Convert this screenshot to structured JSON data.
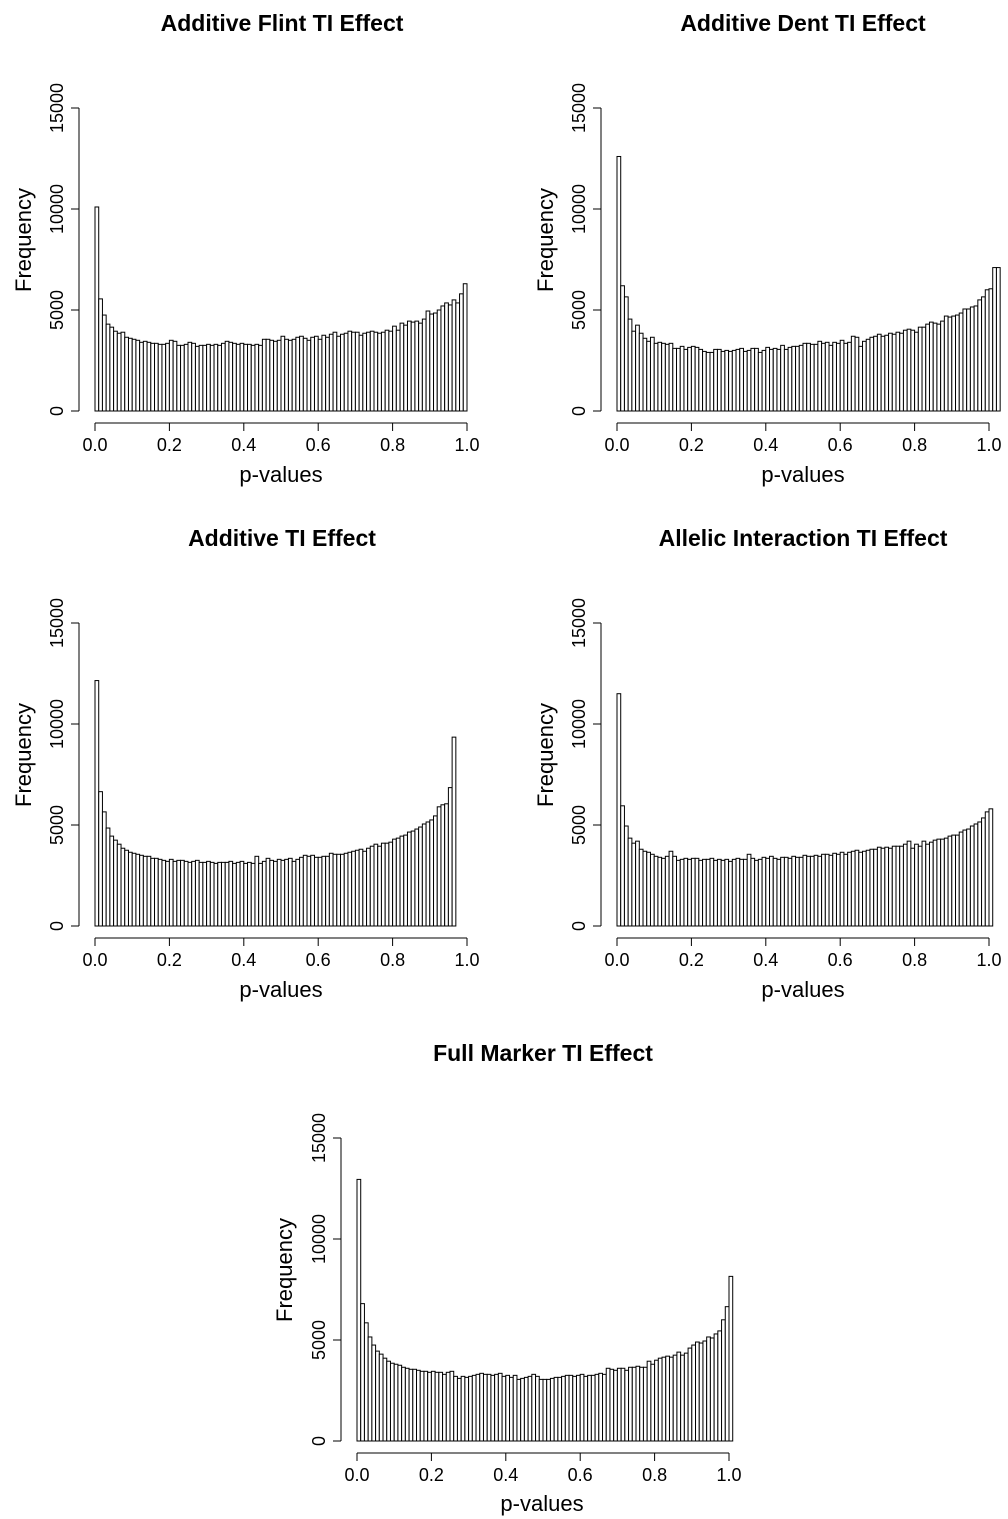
{
  "chart_data": [
    {
      "type": "bar",
      "title": "Additive Flint TI Effect",
      "xlabel": "p-values",
      "ylabel": "Frequency",
      "xlim": [
        0,
        1
      ],
      "ylim": [
        0,
        15000
      ],
      "xticks": [
        "0.0",
        "0.2",
        "0.4",
        "0.6",
        "0.8",
        "1.0"
      ],
      "yticks": [
        "0",
        "5000",
        "10000",
        "15000"
      ],
      "bin_width": 0.01,
      "values": [
        10100,
        5550,
        4750,
        4300,
        4150,
        3950,
        3850,
        3900,
        3650,
        3600,
        3550,
        3500,
        3400,
        3450,
        3400,
        3350,
        3350,
        3300,
        3300,
        3350,
        3500,
        3450,
        3250,
        3250,
        3300,
        3400,
        3350,
        3200,
        3250,
        3250,
        3300,
        3250,
        3300,
        3250,
        3350,
        3450,
        3400,
        3350,
        3300,
        3350,
        3300,
        3300,
        3250,
        3300,
        3250,
        3550,
        3550,
        3500,
        3450,
        3500,
        3700,
        3550,
        3500,
        3550,
        3650,
        3700,
        3600,
        3500,
        3650,
        3700,
        3550,
        3750,
        3650,
        3800,
        3900,
        3700,
        3800,
        3850,
        3950,
        3900,
        3900,
        3750,
        3850,
        3900,
        3950,
        3900,
        3850,
        3900,
        4000,
        3950,
        4200,
        4000,
        4350,
        4250,
        4450,
        4400,
        4450,
        4350,
        4550,
        4950,
        4800,
        4850,
        5000,
        5200,
        5350,
        5250,
        5500,
        5350,
        5800,
        6300
      ]
    },
    {
      "type": "bar",
      "title": "Additive Dent TI Effect",
      "xlabel": "p-values",
      "ylabel": "Frequency",
      "xlim": [
        0,
        1
      ],
      "ylim": [
        0,
        15000
      ],
      "xticks": [
        "0.0",
        "0.2",
        "0.4",
        "0.6",
        "0.8",
        "1.0"
      ],
      "yticks": [
        "0",
        "5000",
        "10000",
        "15000"
      ],
      "bin_width": 0.01,
      "values": [
        12600,
        6200,
        5650,
        4550,
        3950,
        4250,
        3850,
        3600,
        3450,
        3650,
        3350,
        3400,
        3350,
        3300,
        3350,
        3100,
        3100,
        3200,
        3050,
        3150,
        3200,
        3150,
        3050,
        2950,
        2900,
        2900,
        3050,
        3050,
        2950,
        3000,
        2950,
        3000,
        3050,
        3100,
        2950,
        3000,
        3100,
        3100,
        2900,
        3000,
        3150,
        3050,
        3100,
        3050,
        3250,
        3050,
        3150,
        3200,
        3200,
        3250,
        3350,
        3350,
        3300,
        3300,
        3450,
        3350,
        3400,
        3250,
        3400,
        3350,
        3500,
        3350,
        3400,
        3700,
        3650,
        3200,
        3450,
        3550,
        3650,
        3700,
        3800,
        3700,
        3750,
        3850,
        3800,
        3900,
        3850,
        4000,
        4050,
        4000,
        3900,
        4150,
        4150,
        4300,
        4400,
        4350,
        4300,
        4450,
        4700,
        4650,
        4700,
        4750,
        4850,
        5050,
        5050,
        5150,
        5200,
        5500,
        5650,
        6000,
        6050,
        7100,
        7100
      ]
    },
    {
      "type": "bar",
      "title": "Additive TI Effect",
      "xlabel": "p-values",
      "ylabel": "Frequency",
      "xlim": [
        0,
        1
      ],
      "ylim": [
        0,
        15000
      ],
      "xticks": [
        "0.0",
        "0.2",
        "0.4",
        "0.6",
        "0.8",
        "1.0"
      ],
      "yticks": [
        "0",
        "5000",
        "10000",
        "15000"
      ],
      "bin_width": 0.01,
      "values": [
        12150,
        6650,
        5650,
        4850,
        4450,
        4250,
        4050,
        3850,
        3750,
        3650,
        3600,
        3550,
        3500,
        3450,
        3450,
        3350,
        3350,
        3300,
        3250,
        3200,
        3300,
        3200,
        3250,
        3250,
        3200,
        3150,
        3200,
        3250,
        3150,
        3150,
        3200,
        3150,
        3100,
        3150,
        3150,
        3150,
        3200,
        3100,
        3150,
        3200,
        3100,
        3150,
        3100,
        3450,
        3100,
        3200,
        3350,
        3250,
        3200,
        3300,
        3250,
        3300,
        3350,
        3200,
        3300,
        3400,
        3500,
        3450,
        3500,
        3400,
        3400,
        3450,
        3450,
        3600,
        3550,
        3550,
        3550,
        3600,
        3650,
        3700,
        3750,
        3800,
        3700,
        3850,
        3950,
        4050,
        3950,
        4100,
        4100,
        4150,
        4300,
        4350,
        4450,
        4500,
        4650,
        4700,
        4800,
        4900,
        5050,
        5150,
        5250,
        5450,
        5900,
        6000,
        6050,
        6850,
        9350
      ]
    },
    {
      "type": "bar",
      "title": "Allelic Interaction TI Effect",
      "xlabel": "p-values",
      "ylabel": "Frequency",
      "xlim": [
        0,
        1
      ],
      "ylim": [
        0,
        15000
      ],
      "xticks": [
        "0.0",
        "0.2",
        "0.4",
        "0.6",
        "0.8",
        "1.0"
      ],
      "yticks": [
        "0",
        "5000",
        "10000",
        "15000"
      ],
      "bin_width": 0.01,
      "values": [
        11500,
        5950,
        4950,
        4350,
        4100,
        4200,
        3800,
        3700,
        3650,
        3550,
        3450,
        3400,
        3350,
        3450,
        3700,
        3450,
        3250,
        3300,
        3350,
        3300,
        3350,
        3350,
        3250,
        3300,
        3300,
        3350,
        3250,
        3300,
        3250,
        3300,
        3200,
        3300,
        3350,
        3300,
        3300,
        3550,
        3350,
        3250,
        3300,
        3400,
        3350,
        3450,
        3350,
        3300,
        3400,
        3400,
        3350,
        3450,
        3400,
        3400,
        3500,
        3450,
        3450,
        3500,
        3450,
        3550,
        3550,
        3500,
        3600,
        3550,
        3650,
        3550,
        3650,
        3700,
        3750,
        3650,
        3700,
        3750,
        3800,
        3800,
        3900,
        3850,
        3900,
        3850,
        3950,
        3950,
        3950,
        4050,
        4200,
        3850,
        4050,
        3950,
        4200,
        4050,
        4150,
        4250,
        4300,
        4300,
        4350,
        4450,
        4500,
        4500,
        4650,
        4750,
        4800,
        4950,
        5050,
        5150,
        5350,
        5650,
        5800
      ]
    },
    {
      "type": "bar",
      "title": "Full Marker TI Effect",
      "xlabel": "p-values",
      "ylabel": "Frequency",
      "xlim": [
        0,
        1
      ],
      "ylim": [
        0,
        15000
      ],
      "xticks": [
        "0.0",
        "0.2",
        "0.4",
        "0.6",
        "0.8",
        "1.0"
      ],
      "yticks": [
        "0",
        "5000",
        "10000",
        "15000"
      ],
      "bin_width": 0.01,
      "values": [
        12950,
        6800,
        5850,
        5150,
        4750,
        4450,
        4300,
        4100,
        3950,
        3850,
        3800,
        3750,
        3650,
        3600,
        3550,
        3550,
        3500,
        3450,
        3450,
        3400,
        3450,
        3400,
        3400,
        3300,
        3400,
        3450,
        3200,
        3100,
        3200,
        3150,
        3200,
        3250,
        3300,
        3350,
        3300,
        3300,
        3250,
        3300,
        3350,
        3200,
        3250,
        3150,
        3250,
        3050,
        3100,
        3150,
        3200,
        3300,
        3200,
        3050,
        3050,
        3050,
        3100,
        3150,
        3150,
        3200,
        3250,
        3250,
        3200,
        3250,
        3300,
        3200,
        3250,
        3250,
        3300,
        3350,
        3300,
        3600,
        3550,
        3500,
        3600,
        3600,
        3500,
        3650,
        3650,
        3700,
        3650,
        3650,
        3950,
        3800,
        4000,
        4100,
        4150,
        4200,
        4150,
        4250,
        4400,
        4250,
        4350,
        4600,
        4750,
        4900,
        4850,
        4950,
        5150,
        5100,
        5300,
        5450,
        6000,
        6650,
        8150
      ]
    }
  ]
}
